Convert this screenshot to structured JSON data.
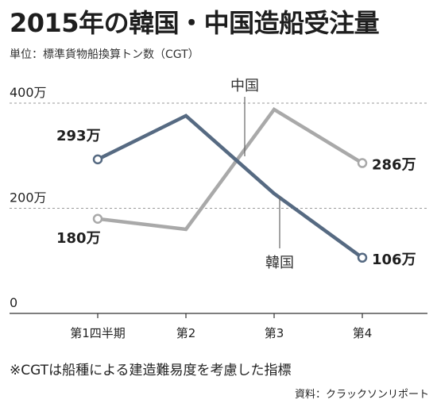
{
  "title": "2015年の韓国・中国造船受注量",
  "subtitle": "単位：標準貨物船換算トン数（CGT）",
  "footnote": "※CGTは船種による建造難易度を考慮した指標",
  "source": "資料：クラックソンリポート",
  "chart_data": {
    "type": "line",
    "title": "2015年の韓国・中国造船受注量",
    "categories": [
      "第1四半期",
      "第2",
      "第3",
      "第4"
    ],
    "ylabel": "",
    "xlabel": "",
    "ylim": [
      0,
      400
    ],
    "yticks": [
      {
        "value": 0,
        "label": "0"
      },
      {
        "value": 200,
        "label": "200万"
      },
      {
        "value": 400,
        "label": "400万"
      }
    ],
    "grid": "dashed horizontal at 200万 and 400万",
    "series": [
      {
        "name": "韓国",
        "color": "#566a82",
        "values": [
          293,
          376,
          228,
          106
        ],
        "labels": [
          "293万",
          "",
          "",
          "106万"
        ]
      },
      {
        "name": "中国",
        "color": "#a9a9a9",
        "values": [
          180,
          160,
          388,
          286
        ],
        "labels": [
          "180万",
          "",
          "",
          "286万"
        ]
      }
    ]
  }
}
